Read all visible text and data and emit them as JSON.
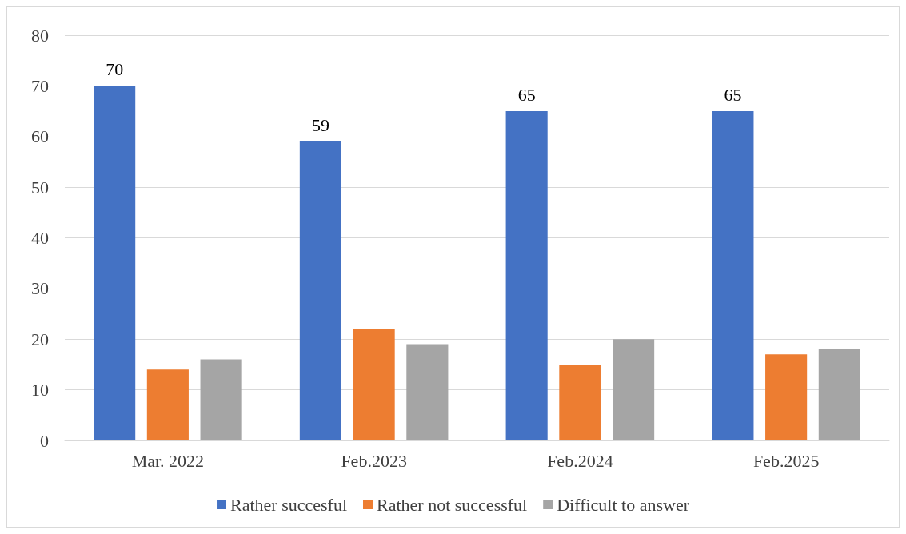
{
  "chart_data": {
    "type": "bar",
    "categories": [
      "Mar. 2022",
      "Feb.2023",
      "Feb.2024",
      "Feb.2025"
    ],
    "series": [
      {
        "name": "Rather succesful",
        "color": "#4472c4",
        "values": [
          70,
          59,
          65,
          65
        ],
        "value_labels": [
          "70",
          "59",
          "65",
          "65"
        ]
      },
      {
        "name": "Rather not successful",
        "color": "#ed7d31",
        "values": [
          14,
          22,
          15,
          17
        ]
      },
      {
        "name": "Difficult to answer",
        "color": "#a5a5a5",
        "values": [
          16,
          19,
          20,
          18
        ]
      }
    ],
    "ylim": [
      0,
      80
    ],
    "yticks": [
      0,
      10,
      20,
      30,
      40,
      50,
      60,
      70,
      80
    ],
    "grid": "y",
    "legend": "bottom"
  }
}
